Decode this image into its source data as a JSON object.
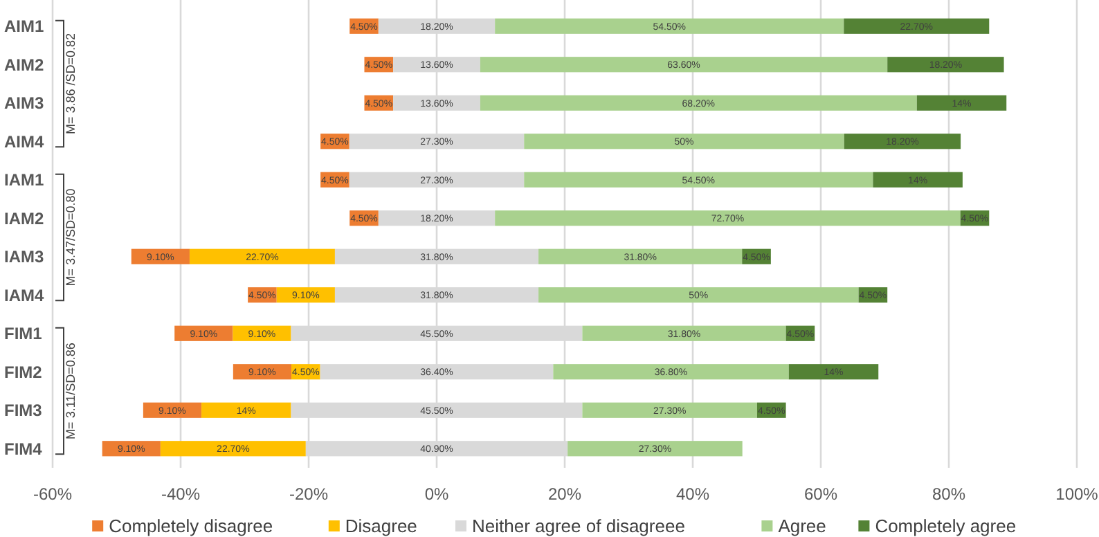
{
  "chart_data": {
    "type": "bar",
    "orientation": "horizontal",
    "categories": [
      "AIM1",
      "AIM2",
      "AIM3",
      "AIM4",
      "IAM1",
      "IAM2",
      "IAM3",
      "IAM4",
      "FIM1",
      "FIM2",
      "FIM3",
      "FIM4"
    ],
    "series": [
      {
        "name": "Completely disagree",
        "color": "#ed7d31",
        "base": [
          -13.6,
          -11.3,
          -11.3,
          -18.15,
          -18.15,
          -13.6,
          -47.7,
          -29.5,
          -40.95,
          -31.8,
          -45.85,
          -52.25
        ],
        "values": [
          4.5,
          4.5,
          4.5,
          4.5,
          4.5,
          4.5,
          9.1,
          4.5,
          9.1,
          9.1,
          9.1,
          9.1
        ],
        "value_labels": [
          "4.50%",
          "4.50%",
          "4.50%",
          "4.50%",
          "4.50%",
          "4.50%",
          "9.10%",
          "4.50%",
          "9.10%",
          "9.10%",
          "9.10%",
          "9.10%"
        ]
      },
      {
        "name": "Disagree",
        "color": "#ffc000",
        "base": [
          null,
          null,
          null,
          null,
          null,
          null,
          -38.6,
          -25,
          -31.85,
          -22.7,
          -36.75,
          -43.15
        ],
        "values": [
          null,
          null,
          null,
          null,
          null,
          null,
          22.7,
          9.1,
          9.1,
          4.5,
          14,
          22.7
        ],
        "value_labels": [
          null,
          null,
          null,
          null,
          null,
          null,
          "22.70%",
          "9.10%",
          "9.10%",
          "4.50%",
          "14%",
          "22.70%"
        ]
      },
      {
        "name": "Neither agree of disagreee",
        "color": "#d9d9d9",
        "base": [
          -9.1,
          -6.8,
          -6.8,
          -13.65,
          -13.65,
          -9.1,
          -15.9,
          -15.9,
          -22.75,
          -18.2,
          -22.75,
          -20.45
        ],
        "values": [
          18.2,
          13.6,
          13.6,
          27.3,
          27.3,
          18.2,
          31.8,
          31.8,
          45.5,
          36.4,
          45.5,
          40.9
        ],
        "value_labels": [
          "18.20%",
          "13.60%",
          "13.60%",
          "27.30%",
          "27.30%",
          "18.20%",
          "31.80%",
          "31.80%",
          "45.50%",
          "36.40%",
          "45.50%",
          "40.90%"
        ]
      },
      {
        "name": "Agree",
        "color": "#a9d18e",
        "base": [
          9.1,
          6.8,
          6.8,
          13.65,
          13.65,
          9.1,
          15.9,
          15.9,
          22.75,
          18.2,
          22.75,
          20.45
        ],
        "values": [
          54.5,
          63.6,
          68.2,
          50,
          54.5,
          72.7,
          31.8,
          50,
          31.8,
          36.8,
          27.3,
          27.3
        ],
        "value_labels": [
          "54.50%",
          "63.60%",
          "68.20%",
          "50%",
          "54.50%",
          "72.70%",
          "31.80%",
          "50%",
          "31.80%",
          "36.80%",
          "27.30%",
          "27.30%"
        ]
      },
      {
        "name": "Completely agree",
        "color": "#548235",
        "base": [
          63.6,
          70.4,
          75,
          63.65,
          68.15,
          81.8,
          47.7,
          65.9,
          54.55,
          55,
          50.05,
          null
        ],
        "values": [
          22.7,
          18.2,
          14,
          18.2,
          14,
          4.5,
          4.5,
          4.5,
          4.5,
          14,
          4.5,
          null
        ],
        "value_labels": [
          "22.70%",
          "18.20%",
          "14%",
          "18.20%",
          "14%",
          "4.50%",
          "4.50%",
          "4.50%",
          "4.50%",
          "14%",
          "4.50%",
          null
        ]
      }
    ],
    "xlim": [
      -60,
      100
    ],
    "xticks": [
      {
        "value": -60,
        "label": "-60%"
      },
      {
        "value": -40,
        "label": "-40%"
      },
      {
        "value": -20,
        "label": "-20%"
      },
      {
        "value": 0,
        "label": "0%"
      },
      {
        "value": 20,
        "label": "20%"
      },
      {
        "value": 40,
        "label": "40%"
      },
      {
        "value": 60,
        "label": "60%"
      },
      {
        "value": 80,
        "label": "80%"
      },
      {
        "value": 100,
        "label": "100%"
      }
    ],
    "grid": "x",
    "legend": "bottom",
    "annotations": [
      "M= 3.86 /SD=0.82",
      "M= 3.47/SD=0.80",
      "M= 3.11/SD=0.86"
    ]
  }
}
